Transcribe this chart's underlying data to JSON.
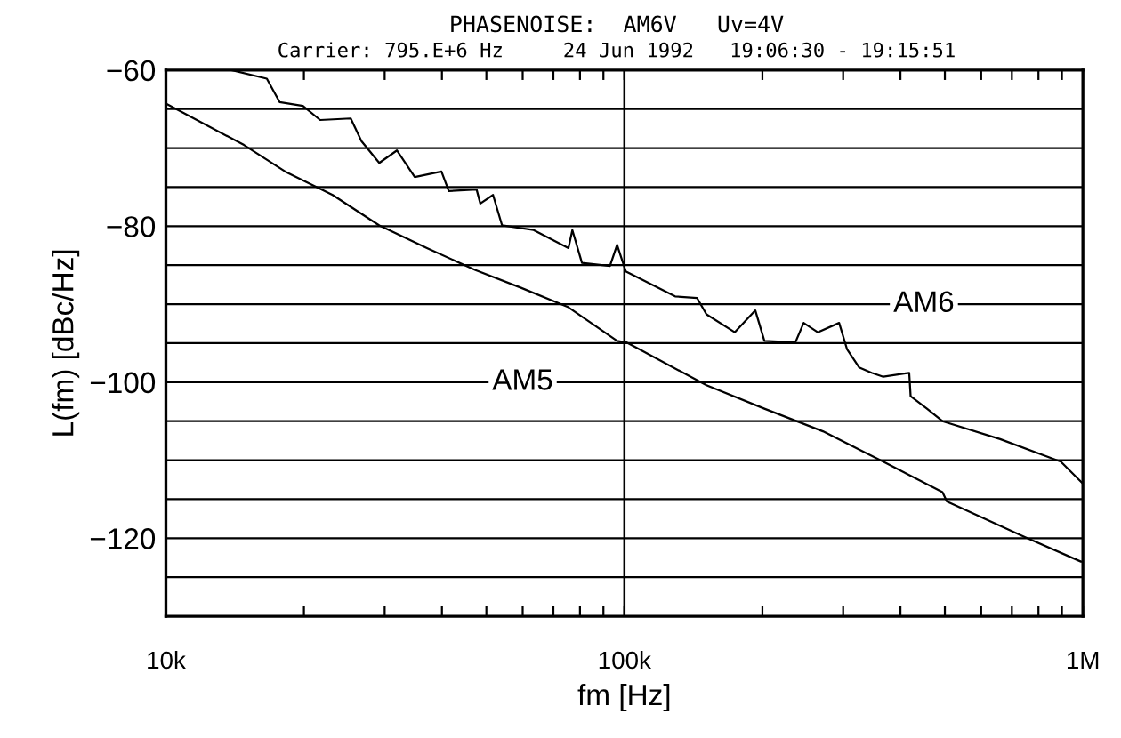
{
  "chart_data": {
    "type": "line",
    "title": "PHASENOISE:  AM6V   Uv=4V",
    "subtitle": "Carrier: 795.E+6 Hz     24 Jun 1992   19:06:30 - 19:15:51",
    "xlabel": "fm [Hz]",
    "ylabel": "L(fm) [dBc/Hz]",
    "log": "x",
    "xlim": [
      10000,
      1000000
    ],
    "xticks": [
      {
        "value": 10000,
        "label": "10k"
      },
      {
        "value": 20000,
        "label": null
      },
      {
        "value": 30000,
        "label": null
      },
      {
        "value": 40000,
        "label": null
      },
      {
        "value": 50000,
        "label": null
      },
      {
        "value": 60000,
        "label": null
      },
      {
        "value": 70000,
        "label": null
      },
      {
        "value": 80000,
        "label": null
      },
      {
        "value": 90000,
        "label": null
      },
      {
        "value": 100000,
        "label": "100k"
      },
      {
        "value": 200000,
        "label": null
      },
      {
        "value": 300000,
        "label": null
      },
      {
        "value": 400000,
        "label": null
      },
      {
        "value": 500000,
        "label": null
      },
      {
        "value": 600000,
        "label": null
      },
      {
        "value": 700000,
        "label": null
      },
      {
        "value": 800000,
        "label": null
      },
      {
        "value": 900000,
        "label": null
      },
      {
        "value": 1000000,
        "label": "1M"
      }
    ],
    "ylim": [
      -130,
      -60
    ],
    "yticks": [
      -60,
      {
        "value": -65,
        "label": null
      },
      {
        "value": -70,
        "label": null
      },
      {
        "value": -75,
        "label": null
      },
      -80,
      {
        "value": -85,
        "label": null
      },
      {
        "value": -90,
        "label": null
      },
      {
        "value": -95,
        "label": null
      },
      -100,
      {
        "value": -105,
        "label": null
      },
      {
        "value": -110,
        "label": null
      },
      {
        "value": -115,
        "label": null
      },
      -120,
      {
        "value": -125,
        "label": null
      }
    ],
    "grid": "y",
    "marker": "none",
    "line_style": "solid",
    "ref_lines": [
      {
        "axis": "x",
        "value": 100000,
        "label": null,
        "color": "#000000"
      }
    ],
    "series": [
      {
        "color": "#000000",
        "x": [
          10000,
          14800,
          18200,
          23100,
          29200,
          37100,
          47200,
          59500,
          75500,
          96400,
          101000,
          108000,
          151000,
          202000,
          271000,
          367000,
          494000,
          505000,
          743000,
          990000,
          1000000
        ],
        "values": [
          -64.3,
          -69.6,
          -73.0,
          -76.0,
          -79.9,
          -82.8,
          -85.6,
          -87.9,
          -90.4,
          -94.7,
          -94.9,
          -95.8,
          -100.4,
          -103.4,
          -106.3,
          -110.2,
          -114.1,
          -115.3,
          -119.8,
          -123.0,
          -123.0
        ]
      },
      {
        "color": "#000000",
        "x": [
          13900,
          16600,
          17700,
          19900,
          21700,
          25300,
          26700,
          29200,
          31900,
          34900,
          39900,
          41400,
          47600,
          48500,
          51700,
          54100,
          63400,
          75500,
          77000,
          80800,
          93000,
          96400,
          100700,
          129000,
          144000,
          151000,
          174000,
          193000,
          202000,
          236000,
          246000,
          264000,
          294000,
          306000,
          325000,
          346000,
          367000,
          418000,
          421000,
          457000,
          494000,
          660000,
          895000,
          1000000
        ],
        "values": [
          -60.0,
          -61.1,
          -64.1,
          -64.6,
          -66.4,
          -66.2,
          -69.1,
          -71.9,
          -70.3,
          -73.7,
          -73.0,
          -75.5,
          -75.3,
          -77.1,
          -76.0,
          -79.9,
          -80.5,
          -82.8,
          -80.5,
          -84.7,
          -85.1,
          -82.4,
          -85.8,
          -89.0,
          -89.2,
          -91.3,
          -93.6,
          -90.8,
          -94.7,
          -94.9,
          -92.4,
          -93.6,
          -92.4,
          -95.8,
          -98.1,
          -98.8,
          -99.3,
          -98.8,
          -101.8,
          -103.4,
          -105.0,
          -107.3,
          -110.2,
          -113.0
        ]
      }
    ],
    "annotations": [
      {
        "text": "AM5",
        "x": 60000,
        "y": -100
      },
      {
        "text": "AM6",
        "x": 450000,
        "y": -90
      }
    ]
  }
}
